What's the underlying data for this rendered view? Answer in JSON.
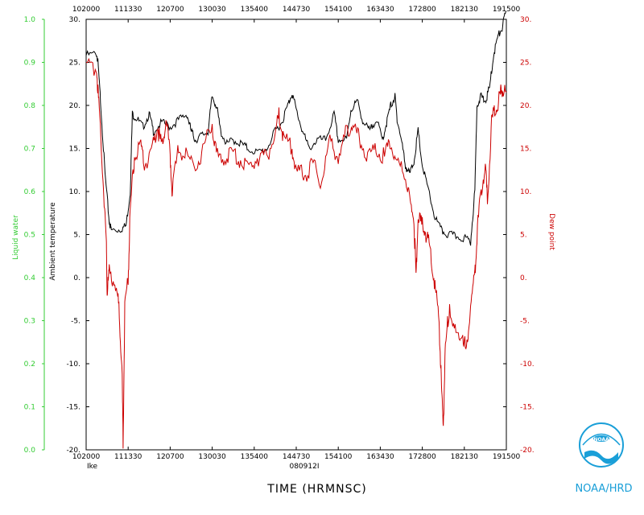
{
  "chart_data": {
    "type": "line",
    "xlabel": "TIME (HRMNSC)",
    "bottom_left_label": "Ike",
    "bottom_center_label": "080912I",
    "time_ticks": [
      "102000",
      "111330",
      "120700",
      "130030",
      "135400",
      "144730",
      "154100",
      "163430",
      "172800",
      "182130",
      "191500"
    ],
    "left_axis": {
      "label": "Liquid water",
      "ylim": [
        0.0,
        1.0
      ],
      "ticks": [
        "0.0",
        "0.1",
        "0.2",
        "0.3",
        "0.4",
        "0.5",
        "0.6",
        "0.7",
        "0.8",
        "0.9",
        "1.0"
      ],
      "color": "#33cc33"
    },
    "inner_axis": {
      "label": "Ambient temperature",
      "ylim": [
        -20,
        30
      ],
      "ticks": [
        "-20.",
        "-15.",
        "-10.",
        "-5.",
        "0.",
        "5.",
        "10.",
        "15.",
        "20.",
        "25.",
        "30."
      ],
      "color": "#000000"
    },
    "right_axis": {
      "label": "Dew point",
      "ylim": [
        -20,
        30
      ],
      "ticks": [
        "-20.",
        "-15.",
        "-10.",
        "-5.",
        "0.",
        "5.",
        "10.",
        "15.",
        "20.",
        "25.",
        "30."
      ],
      "color": "#cc0000"
    },
    "x_range": [
      0,
      10
    ],
    "series": [
      {
        "color": "#000000",
        "points": [
          [
            0,
            25.8
          ],
          [
            0.25,
            26
          ],
          [
            0.28,
            25
          ],
          [
            0.35,
            20
          ],
          [
            0.45,
            12
          ],
          [
            0.55,
            6.5
          ],
          [
            0.6,
            5.5
          ],
          [
            0.8,
            5.6
          ],
          [
            0.95,
            6
          ],
          [
            1.05,
            10
          ],
          [
            1.1,
            19
          ],
          [
            1.2,
            18.5
          ],
          [
            1.35,
            17.5
          ],
          [
            1.5,
            19
          ],
          [
            1.6,
            17
          ],
          [
            1.8,
            18
          ],
          [
            2.0,
            17.5
          ],
          [
            2.2,
            18.3
          ],
          [
            2.4,
            19
          ],
          [
            2.5,
            17
          ],
          [
            2.6,
            16
          ],
          [
            2.75,
            16.5
          ],
          [
            2.9,
            17
          ],
          [
            3.0,
            21
          ],
          [
            3.1,
            20
          ],
          [
            3.2,
            17
          ],
          [
            3.35,
            15.5
          ],
          [
            3.5,
            16
          ],
          [
            3.7,
            15.5
          ],
          [
            3.85,
            15
          ],
          [
            4.1,
            14.5
          ],
          [
            4.3,
            15
          ],
          [
            4.5,
            17
          ],
          [
            4.65,
            18
          ],
          [
            4.8,
            20
          ],
          [
            4.9,
            21.5
          ],
          [
            5.0,
            19.5
          ],
          [
            5.15,
            17
          ],
          [
            5.3,
            15
          ],
          [
            5.5,
            16
          ],
          [
            5.7,
            16
          ],
          [
            5.9,
            19
          ],
          [
            6.0,
            16
          ],
          [
            6.2,
            16
          ],
          [
            6.3,
            19.5
          ],
          [
            6.45,
            20.5
          ],
          [
            6.6,
            18
          ],
          [
            6.75,
            17
          ],
          [
            6.9,
            18.5
          ],
          [
            7.05,
            16
          ],
          [
            7.15,
            18
          ],
          [
            7.25,
            20
          ],
          [
            7.35,
            21
          ],
          [
            7.4,
            18.5
          ],
          [
            7.5,
            16
          ],
          [
            7.6,
            13
          ],
          [
            7.7,
            12
          ],
          [
            7.8,
            13.5
          ],
          [
            7.9,
            17
          ],
          [
            8.0,
            13
          ],
          [
            8.15,
            10
          ],
          [
            8.3,
            7
          ],
          [
            8.45,
            5.5
          ],
          [
            8.6,
            5
          ],
          [
            8.8,
            4.8
          ],
          [
            9.0,
            4.6
          ],
          [
            9.15,
            4.2
          ],
          [
            9.25,
            10
          ],
          [
            9.3,
            20
          ],
          [
            9.4,
            21
          ],
          [
            9.5,
            20.5
          ],
          [
            9.6,
            22
          ],
          [
            9.7,
            26
          ],
          [
            9.8,
            28
          ],
          [
            9.9,
            29
          ],
          [
            10.0,
            31
          ]
        ]
      },
      {
        "color": "#cc0000",
        "points": [
          [
            0,
            24.3
          ],
          [
            0.25,
            24.5
          ],
          [
            0.3,
            20
          ],
          [
            0.4,
            12
          ],
          [
            0.48,
            4
          ],
          [
            0.5,
            -1.5
          ],
          [
            0.55,
            0.5
          ],
          [
            0.7,
            -0.5
          ],
          [
            0.78,
            -3.5
          ],
          [
            0.85,
            -10
          ],
          [
            0.88,
            -19
          ],
          [
            0.92,
            -3
          ],
          [
            1.0,
            0
          ],
          [
            1.05,
            8
          ],
          [
            1.15,
            14
          ],
          [
            1.3,
            15
          ],
          [
            1.4,
            13
          ],
          [
            1.6,
            15.5
          ],
          [
            1.7,
            17.5
          ],
          [
            1.8,
            15
          ],
          [
            1.9,
            18.5
          ],
          [
            2.0,
            14
          ],
          [
            2.05,
            10
          ],
          [
            2.2,
            15
          ],
          [
            2.4,
            14
          ],
          [
            2.6,
            13
          ],
          [
            2.8,
            15
          ],
          [
            3.0,
            18
          ],
          [
            3.1,
            14
          ],
          [
            3.3,
            14
          ],
          [
            3.5,
            14.5
          ],
          [
            3.7,
            13.5
          ],
          [
            3.9,
            13
          ],
          [
            4.1,
            14
          ],
          [
            4.3,
            14
          ],
          [
            4.5,
            17
          ],
          [
            4.6,
            19
          ],
          [
            4.7,
            16
          ],
          [
            4.9,
            15
          ],
          [
            5.0,
            12
          ],
          [
            5.2,
            12
          ],
          [
            5.4,
            13
          ],
          [
            5.6,
            11
          ],
          [
            5.8,
            16
          ],
          [
            6.0,
            14
          ],
          [
            6.2,
            17
          ],
          [
            6.35,
            18
          ],
          [
            6.5,
            16
          ],
          [
            6.7,
            14
          ],
          [
            6.9,
            15
          ],
          [
            7.1,
            14
          ],
          [
            7.25,
            16
          ],
          [
            7.4,
            13
          ],
          [
            7.6,
            12
          ],
          [
            7.7,
            9
          ],
          [
            7.8,
            7
          ],
          [
            7.85,
            0
          ],
          [
            7.9,
            7
          ],
          [
            8.0,
            6
          ],
          [
            8.1,
            5
          ],
          [
            8.2,
            3
          ],
          [
            8.3,
            -1
          ],
          [
            8.4,
            -5
          ],
          [
            8.45,
            -12
          ],
          [
            8.5,
            -17
          ],
          [
            8.55,
            -8
          ],
          [
            8.65,
            -3
          ],
          [
            8.8,
            -7
          ],
          [
            8.95,
            -6
          ],
          [
            9.05,
            -9
          ],
          [
            9.15,
            -3
          ],
          [
            9.25,
            0
          ],
          [
            9.3,
            5
          ],
          [
            9.4,
            10
          ],
          [
            9.5,
            13
          ],
          [
            9.55,
            9
          ],
          [
            9.65,
            18
          ],
          [
            9.75,
            20
          ],
          [
            9.85,
            21
          ],
          [
            9.9,
            22
          ],
          [
            10.0,
            21.5
          ]
        ]
      }
    ]
  },
  "logo": {
    "text": "NOAA/HRD",
    "emblem_text": "NOAA"
  }
}
